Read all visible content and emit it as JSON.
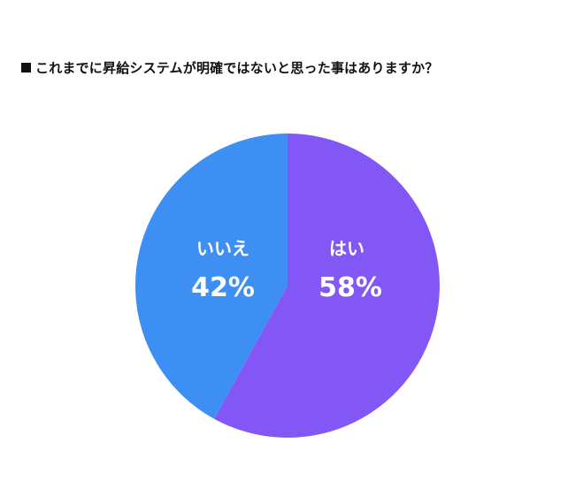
{
  "chart_data": {
    "type": "pie",
    "title": "これまでに昇給システムが明確ではないと思った事はありますか？",
    "title_marker": "■",
    "categories": [
      "はい",
      "いいえ"
    ],
    "values": [
      58,
      42
    ],
    "value_labels": [
      "58%",
      "42%"
    ],
    "colors": [
      "#8257F5",
      "#3D8FF4"
    ],
    "start": "12 o'clock",
    "direction": "clockwise",
    "legend": "none"
  }
}
